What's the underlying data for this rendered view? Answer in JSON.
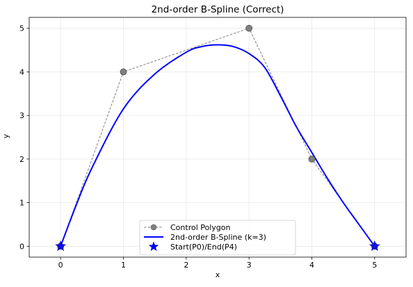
{
  "chart_data": {
    "type": "line",
    "title": "2nd-order B-Spline (Correct)",
    "xlabel": "x",
    "ylabel": "y",
    "xlim": [
      -0.5,
      5.5
    ],
    "ylim": [
      -0.25,
      5.25
    ],
    "xticks": [
      0,
      1,
      2,
      3,
      4,
      5
    ],
    "yticks": [
      0,
      1,
      2,
      3,
      4,
      5
    ],
    "grid": true,
    "legend_position": "bottom-center",
    "series": [
      {
        "name": "Control Polygon",
        "style": "dashed-markers",
        "color": "#808080",
        "x": [
          0,
          1,
          3,
          4,
          5
        ],
        "y": [
          0,
          4,
          5,
          2,
          0
        ]
      },
      {
        "name": "2nd-order B-Spline (k=3)",
        "style": "line",
        "color": "#0000ff",
        "x": [
          0,
          0.25,
          0.5,
          1.0,
          1.5,
          2.0,
          2.25,
          2.5,
          2.75,
          3.0,
          3.25,
          3.5,
          3.75,
          4.0,
          4.25,
          4.5,
          4.75,
          5.0
        ],
        "y": [
          0,
          0.95,
          1.8,
          3.15,
          3.95,
          4.45,
          4.58,
          4.62,
          4.58,
          4.42,
          4.1,
          3.45,
          2.75,
          2.15,
          1.55,
          1.0,
          0.5,
          0
        ]
      },
      {
        "name": "Start(P0)/End(P4)",
        "style": "star-markers",
        "color": "#0000ff",
        "x": [
          0,
          5
        ],
        "y": [
          0,
          0
        ]
      }
    ]
  }
}
